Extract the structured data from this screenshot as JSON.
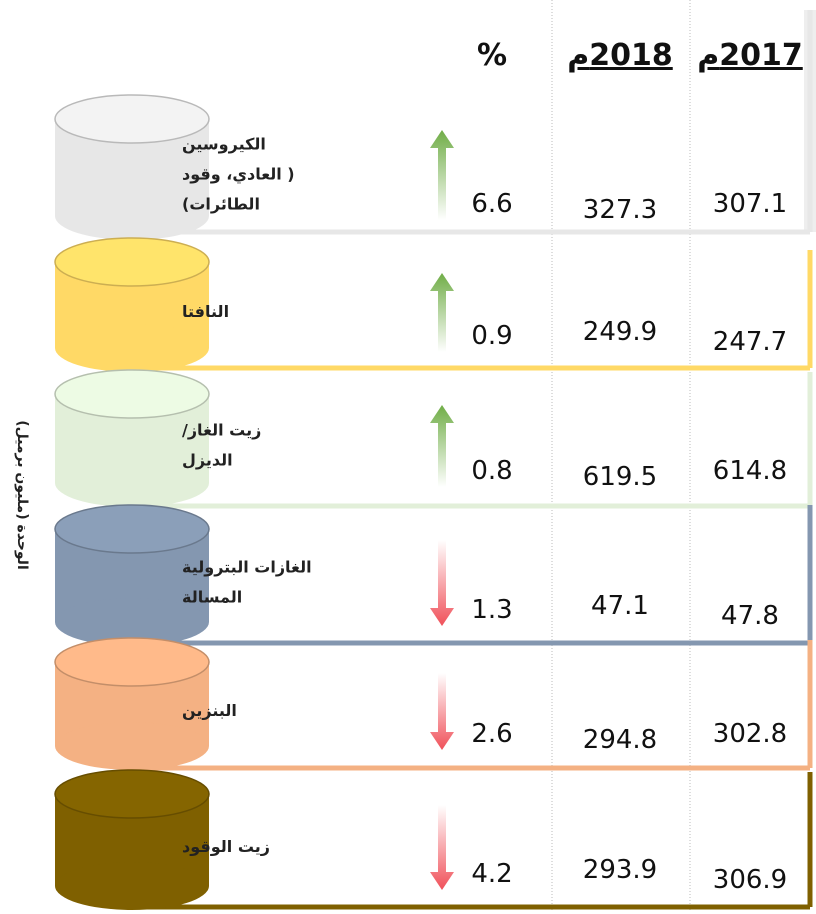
{
  "header": {
    "pct": "%",
    "y2018": "2018م",
    "y2017": "2017م"
  },
  "unit_label": "الوحدة (مليون برميل)",
  "rows": [
    {
      "label": [
        "الكيروسين",
        "( العادي، وقود",
        "الطائرات)"
      ],
      "pct": 6.6,
      "y2018": 327.3,
      "y2017": 307.1,
      "trend": "up",
      "color": "#e7e7e7"
    },
    {
      "label": [
        "النافتا"
      ],
      "pct": 0.9,
      "y2018": 249.9,
      "y2017": 247.7,
      "trend": "up",
      "color": "#ffd966"
    },
    {
      "label": [
        "زيت الغاز/",
        "الديزل"
      ],
      "pct": 0.8,
      "y2018": 619.5,
      "y2017": 614.8,
      "trend": "up",
      "color": "#e2efd9"
    },
    {
      "label": [
        "الغازات البترولية",
        "المسالة"
      ],
      "pct": 1.3,
      "y2018": 47.1,
      "y2017": 47.8,
      "trend": "down",
      "color": "#8497b0"
    },
    {
      "label": [
        "البنزين"
      ],
      "pct": 2.6,
      "y2018": 294.8,
      "y2017": 302.8,
      "trend": "down",
      "color": "#f4b183"
    },
    {
      "label": [
        "زيت الوقود"
      ],
      "pct": 4.2,
      "y2018": 293.9,
      "y2017": 306.9,
      "trend": "down",
      "color": "#7f6000"
    }
  ]
}
